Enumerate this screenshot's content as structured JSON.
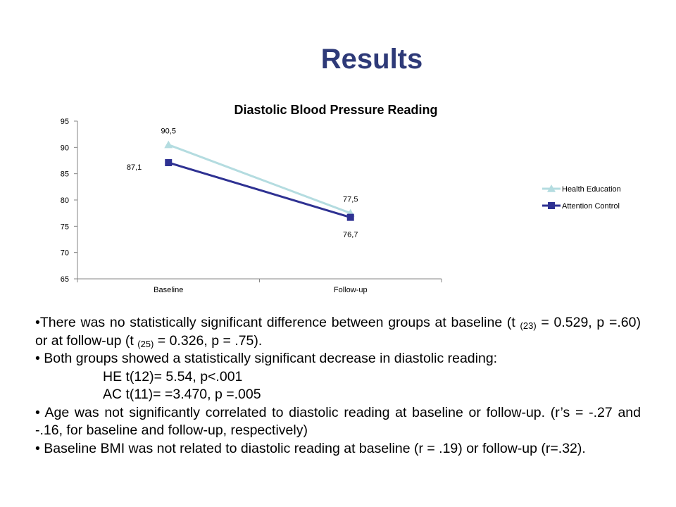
{
  "slide": {
    "title": "Results"
  },
  "chart_data": {
    "type": "line",
    "title": "Diastolic Blood Pressure Reading",
    "categories": [
      "Baseline",
      "Follow-up"
    ],
    "series": [
      {
        "name": "Health Education",
        "values": [
          90.5,
          77.5
        ],
        "labels": [
          "90,5",
          "77,5"
        ],
        "color": "#b4dce0",
        "marker": "triangle"
      },
      {
        "name": "Attention Control",
        "values": [
          87.1,
          76.7
        ],
        "labels": [
          "87,1",
          "76,7"
        ],
        "color": "#2e3192",
        "marker": "square"
      }
    ],
    "ylim": [
      65,
      95
    ],
    "yticks": [
      65,
      70,
      75,
      80,
      85,
      90,
      95
    ],
    "grid": false,
    "legend_position": "right"
  },
  "bullets": {
    "b1": {
      "part1": "•There was no statistically significant difference between groups at baseline (t ",
      "sub1": "(23)",
      "part2": " = 0.529, p =.60) or at follow-up (t ",
      "sub2": "(25)",
      "part3": " = 0.326, p = .75)."
    },
    "b2": "• Both groups showed a statistically significant decrease in diastolic reading:",
    "b2_he": "HE t(12)= 5.54, p<.001",
    "b2_ac": "AC t(11)= =3.470, p =.005",
    "b3": "•  Age was not significantly correlated to diastolic reading at baseline or follow-up. (r’s = -.27 and -.16, for baseline and follow-up, respectively)",
    "b4": "• Baseline BMI was not related to diastolic reading at baseline (r = .19) or follow-up (r=.32)."
  }
}
